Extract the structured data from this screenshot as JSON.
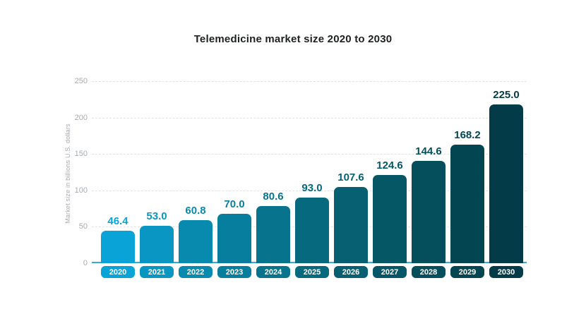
{
  "page": {
    "background": "#ffffff"
  },
  "chart_data": {
    "type": "bar",
    "title": "Telemedicine market size 2020 to 2030",
    "categories": [
      "2020",
      "2021",
      "2022",
      "2023",
      "2024",
      "2025",
      "2026",
      "2027",
      "2028",
      "2029",
      "2030"
    ],
    "values": [
      46.4,
      53.0,
      60.8,
      70.0,
      80.6,
      93.0,
      107.6,
      124.6,
      144.6,
      168.2,
      225.0
    ],
    "value_labels": [
      "46.4",
      "53.0",
      "60.8",
      "70.0",
      "80.6",
      "93.0",
      "107.6",
      "124.6",
      "144.6",
      "168.2",
      "225.0"
    ],
    "xlabel": "",
    "ylabel": "Market size in billions U.S. dollars",
    "ylim": [
      0,
      250
    ],
    "yticks": [
      0,
      50,
      100,
      150,
      200,
      250
    ],
    "ytick_labels": [
      "0",
      "50",
      "100",
      "150",
      "200",
      "250"
    ],
    "grid": "horizontal-dashed",
    "legend_position": "none",
    "bar_colors": [
      "#0aa3d7",
      "#0996c3",
      "#088aaf",
      "#077e9d",
      "#07738d",
      "#06697e",
      "#066071",
      "#055766",
      "#054e5b",
      "#044552",
      "#043b49"
    ],
    "baseline_color": "#35abdc",
    "gridline_color": "#dfe3e6",
    "tick_color": "#a6abaf",
    "title_color": "#1e2022",
    "pill_text_color": "#ffffff"
  }
}
